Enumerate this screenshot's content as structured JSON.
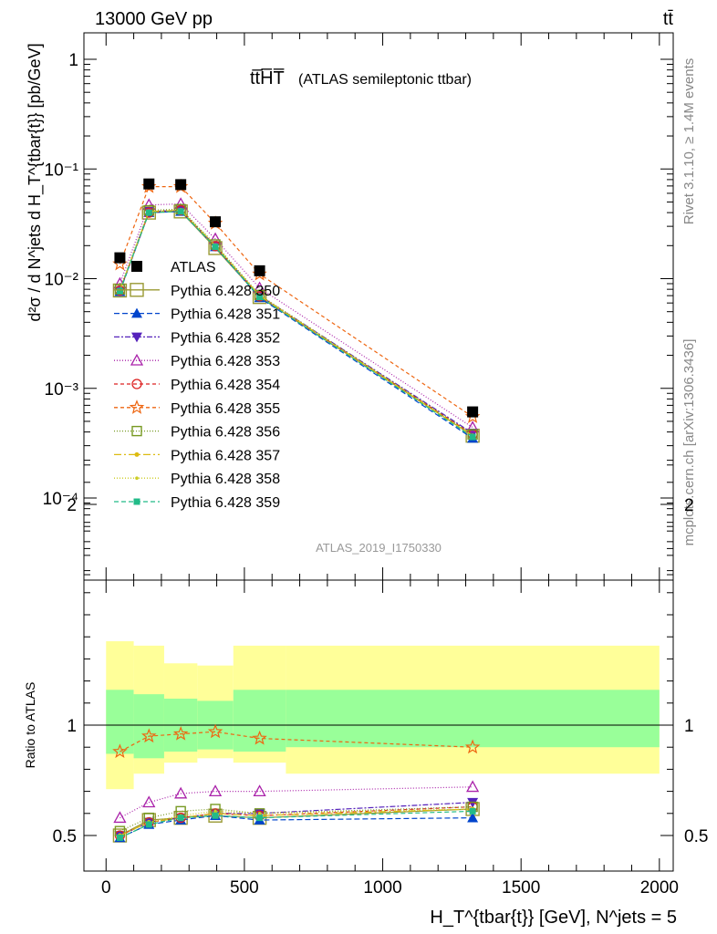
{
  "header": {
    "energy_label": "13000 GeV pp",
    "process_label": "tt̄"
  },
  "main_panel": {
    "title_main": "tt̅H̅T̅",
    "title_sub": "(ATLAS semileptonic ttbar)",
    "ylabel": "d²σ / d N^jets d H_T^{tbar{t}} [pb/GeV]",
    "analysis_id": "ATLAS_2019_I1750330",
    "side_rivet": "Rivet 3.1.10, ≥ 1.4M events",
    "side_mcplots": "mcplots.cern.ch [arXiv:1306.3436]",
    "y_ticks": [
      "1",
      "10⁻¹",
      "10⁻²",
      "10⁻³",
      "10⁻⁴"
    ]
  },
  "ratio_panel": {
    "ylabel": "Ratio to ATLAS",
    "y_ticks": [
      "0.5",
      "1",
      "2"
    ]
  },
  "x_axis": {
    "label": "H_T^{tbar{t}} [GeV], N^jets = 5",
    "ticks": [
      "0",
      "500",
      "1000",
      "1500",
      "2000"
    ]
  },
  "chart_data": {
    "type": "scatter",
    "x_scale": "linear",
    "y_scale": "log",
    "xlim": [
      -80,
      2050
    ],
    "ylim": [
      2e-05,
      1.8
    ],
    "ratio_ylim": [
      0.4,
      2.4
    ],
    "bin_edges": [
      0,
      100,
      210,
      330,
      460,
      650,
      2000
    ],
    "x": [
      50,
      155,
      270,
      395,
      555,
      1325
    ],
    "ratio_bands": {
      "green_color": "#99ff99",
      "yellow_color": "#ffff99",
      "green_low": [
        0.87,
        0.85,
        0.88,
        0.89,
        0.88,
        0.9
      ],
      "green_high": [
        1.16,
        1.14,
        1.12,
        1.11,
        1.16,
        1.16
      ],
      "yellow_low": [
        0.71,
        0.78,
        0.83,
        0.85,
        0.83,
        0.78
      ],
      "yellow_high": [
        1.38,
        1.36,
        1.28,
        1.27,
        1.36,
        1.36
      ]
    },
    "series": [
      {
        "name": "ATLAS",
        "color": "#000000",
        "marker": "square-filled",
        "dash": "none",
        "values": [
          0.0155,
          0.073,
          0.072,
          0.033,
          0.0118,
          0.00061
        ]
      },
      {
        "name": "Pythia 6.428 350",
        "color": "#999933",
        "marker": "square-open",
        "dash": "solid",
        "values": [
          0.0078,
          0.04,
          0.041,
          0.019,
          0.0068,
          0.00037
        ],
        "ratio": [
          0.5,
          0.57,
          0.58,
          0.59,
          0.58,
          0.62
        ]
      },
      {
        "name": "Pythia 6.428 351",
        "color": "#0044cc",
        "marker": "triangle-up-filled",
        "dash": "6,3",
        "values": [
          0.0076,
          0.04,
          0.041,
          0.0195,
          0.0067,
          0.00035
        ],
        "ratio": [
          0.49,
          0.55,
          0.57,
          0.59,
          0.57,
          0.58
        ]
      },
      {
        "name": "Pythia 6.428 352",
        "color": "#5522bb",
        "marker": "triangle-down-filled",
        "dash": "6,2,2,2",
        "values": [
          0.0077,
          0.041,
          0.042,
          0.0198,
          0.007,
          0.00039
        ],
        "ratio": [
          0.5,
          0.56,
          0.58,
          0.6,
          0.6,
          0.65
        ]
      },
      {
        "name": "Pythia 6.428 353",
        "color": "#aa22aa",
        "marker": "triangle-up-open",
        "dash": "1,2",
        "values": [
          0.009,
          0.047,
          0.048,
          0.023,
          0.0082,
          0.00044
        ],
        "ratio": [
          0.58,
          0.65,
          0.69,
          0.7,
          0.7,
          0.72
        ]
      },
      {
        "name": "Pythia 6.428 354",
        "color": "#dd2222",
        "marker": "circle-open",
        "dash": "4,3",
        "values": [
          0.0078,
          0.04,
          0.042,
          0.0198,
          0.0069,
          0.00038
        ],
        "ratio": [
          0.5,
          0.56,
          0.58,
          0.6,
          0.59,
          0.63
        ]
      },
      {
        "name": "Pythia 6.428 355",
        "color": "#ee6611",
        "marker": "star-open",
        "dash": "4,3",
        "values": [
          0.0136,
          0.069,
          0.069,
          0.032,
          0.011,
          0.00055
        ],
        "ratio": [
          0.88,
          0.95,
          0.96,
          0.97,
          0.94,
          0.9
        ]
      },
      {
        "name": "Pythia 6.428 356",
        "color": "#779922",
        "marker": "square-open-small",
        "dash": "1,2",
        "values": [
          0.008,
          0.042,
          0.043,
          0.0205,
          0.0071,
          0.00038
        ],
        "ratio": [
          0.52,
          0.58,
          0.61,
          0.62,
          0.6,
          0.63
        ]
      },
      {
        "name": "Pythia 6.428 357",
        "color": "#ddbb11",
        "marker": "dot",
        "dash": "8,3,2,3",
        "values": [
          0.0078,
          0.041,
          0.042,
          0.02,
          0.007,
          0.00037
        ],
        "ratio": [
          0.5,
          0.56,
          0.58,
          0.6,
          0.59,
          0.62
        ]
      },
      {
        "name": "Pythia 6.428 358",
        "color": "#cccc22",
        "marker": "dot-small",
        "dash": "1,2",
        "values": [
          0.0078,
          0.041,
          0.042,
          0.02,
          0.007,
          0.00037
        ],
        "ratio": [
          0.5,
          0.56,
          0.59,
          0.61,
          0.6,
          0.62
        ]
      },
      {
        "name": "Pythia 6.428 359",
        "color": "#22bb88",
        "marker": "square-filled-small",
        "dash": "5,3",
        "values": [
          0.0077,
          0.04,
          0.041,
          0.0195,
          0.0068,
          0.00036
        ],
        "ratio": [
          0.49,
          0.55,
          0.58,
          0.59,
          0.58,
          0.61
        ]
      }
    ]
  }
}
